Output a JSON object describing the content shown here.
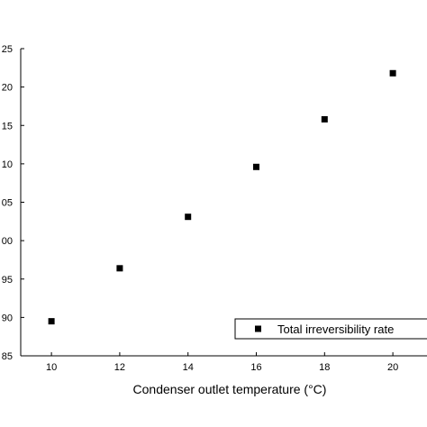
{
  "chart_data": {
    "type": "scatter",
    "title": "",
    "xlabel": "Condenser outlet temperature (°C)",
    "ylabel": "",
    "x_ticks": [
      "10",
      "12",
      "14",
      "16",
      "18",
      "20"
    ],
    "y_ticks": [
      "85",
      "90",
      "95",
      "00",
      "05",
      "10",
      "15",
      "20",
      "25"
    ],
    "xlim": [
      9.1,
      21
    ],
    "ylim": [
      85,
      125
    ],
    "grid": false,
    "legend_position": "bottom-right",
    "series": [
      {
        "name": "Total irreversibility rate",
        "marker": "square",
        "color": "#000000",
        "x": [
          10,
          12,
          14,
          16,
          18,
          20
        ],
        "y": [
          89.5,
          96.4,
          103.1,
          109.6,
          115.8,
          121.8
        ]
      }
    ]
  }
}
